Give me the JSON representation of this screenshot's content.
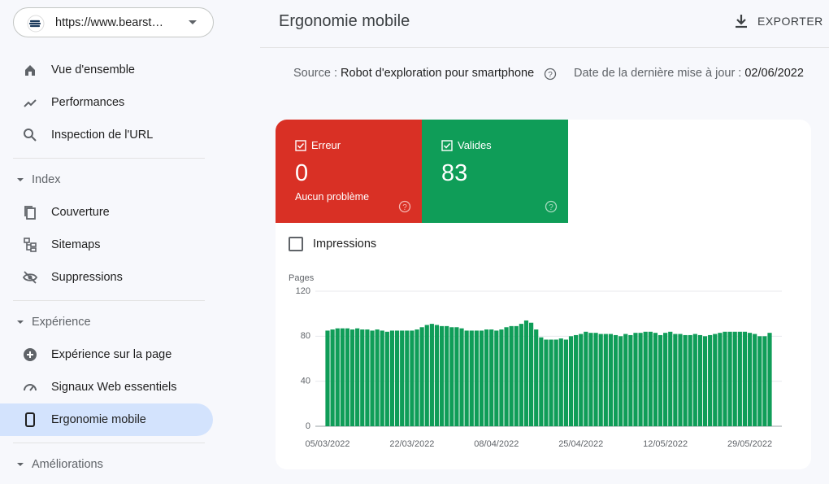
{
  "property": {
    "url": "https://www.bearst…"
  },
  "nav": {
    "top": [
      "Vue d'ensemble",
      "Performances",
      "Inspection de l'URL"
    ],
    "sections": [
      {
        "title": "Index",
        "items": [
          "Couverture",
          "Sitemaps",
          "Suppressions"
        ]
      },
      {
        "title": "Expérience",
        "items": [
          "Expérience sur la page",
          "Signaux Web essentiels",
          "Ergonomie mobile"
        ]
      },
      {
        "title": "Améliorations",
        "items": []
      }
    ]
  },
  "header": {
    "title": "Ergonomie mobile",
    "export": "EXPORTER"
  },
  "meta": {
    "source_label": "Source :",
    "source": "Robot d'exploration pour smartphone",
    "date_label": "Date de la dernière mise à jour :",
    "date": "02/06/2022"
  },
  "tiles": [
    {
      "label": "Erreur",
      "value": 0,
      "note": "Aucun problème"
    },
    {
      "label": "Valides",
      "value": 83
    }
  ],
  "checkbox": {
    "label": "Impressions"
  },
  "chart_data": {
    "type": "bar",
    "y_label": "Pages",
    "color": "#0f9d58",
    "ylim": [
      0,
      120
    ],
    "yticks": [
      0,
      40,
      80,
      120
    ],
    "grid": true,
    "categories": [
      "05/03/2022",
      null,
      null,
      null,
      null,
      null,
      null,
      null,
      null,
      null,
      null,
      null,
      null,
      null,
      null,
      null,
      null,
      "22/03/2022",
      null,
      null,
      null,
      null,
      null,
      null,
      null,
      null,
      null,
      null,
      null,
      null,
      null,
      null,
      null,
      null,
      "08/04/2022",
      null,
      null,
      null,
      null,
      null,
      null,
      null,
      null,
      null,
      null,
      null,
      null,
      null,
      null,
      null,
      null,
      "25/04/2022",
      null,
      null,
      null,
      null,
      null,
      null,
      null,
      null,
      null,
      null,
      null,
      null,
      null,
      null,
      null,
      null,
      "12/05/2022",
      null,
      null,
      null,
      null,
      null,
      null,
      null,
      null,
      null,
      null,
      null,
      null,
      null,
      null,
      null,
      null,
      "29/05/2022",
      null,
      null,
      null,
      null
    ],
    "values": [
      85,
      86,
      87,
      87,
      87,
      86,
      87,
      86,
      86,
      85,
      86,
      85,
      84,
      85,
      85,
      85,
      85,
      85,
      86,
      88,
      90,
      91,
      90,
      89,
      89,
      88,
      88,
      87,
      85,
      85,
      85,
      85,
      86,
      86,
      85,
      86,
      88,
      89,
      89,
      91,
      94,
      92,
      86,
      79,
      77,
      77,
      77,
      78,
      77,
      80,
      81,
      82,
      84,
      83,
      83,
      82,
      82,
      82,
      81,
      80,
      82,
      81,
      83,
      83,
      84,
      84,
      83,
      81,
      83,
      84,
      82,
      82,
      81,
      81,
      82,
      81,
      80,
      81,
      82,
      83,
      84,
      84,
      84,
      84,
      84,
      83,
      82,
      80,
      80,
      83
    ]
  }
}
